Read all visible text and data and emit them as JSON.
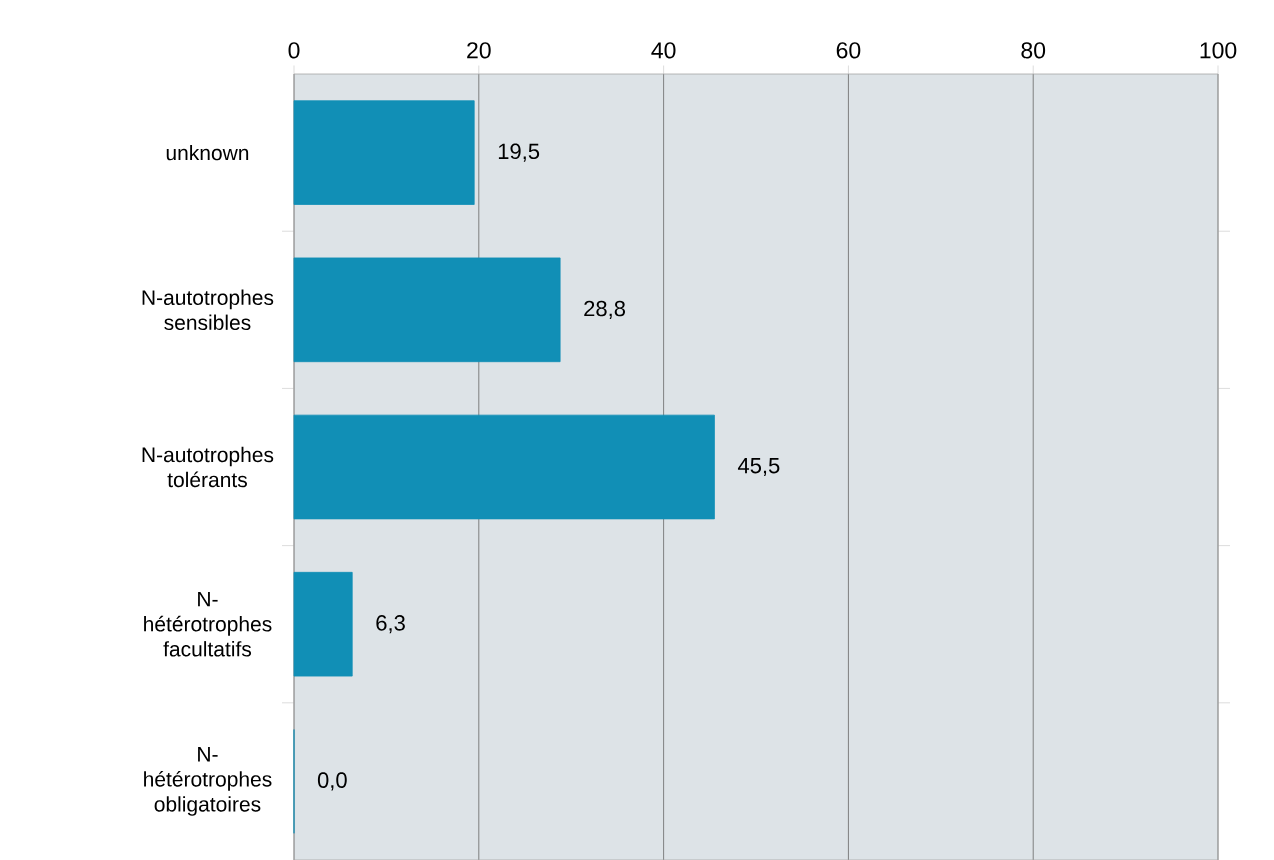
{
  "chart_data": {
    "type": "bar",
    "orientation": "horizontal",
    "categories": [
      "unknown",
      "N-autotrophes sensibles",
      "N-autotrophes tolérants",
      "N-hétérotrophes facultatifs",
      "N-hétérotrophes obligatoires"
    ],
    "values": [
      19.5,
      28.8,
      45.5,
      6.3,
      0.0
    ],
    "value_labels": [
      "19,5",
      "28,8",
      "45,5",
      "6,3",
      "0,0"
    ],
    "color": "#118fb6",
    "xlim": [
      0,
      100
    ],
    "xticks": [
      0,
      20,
      40,
      60,
      80,
      100
    ],
    "grid": "x"
  }
}
